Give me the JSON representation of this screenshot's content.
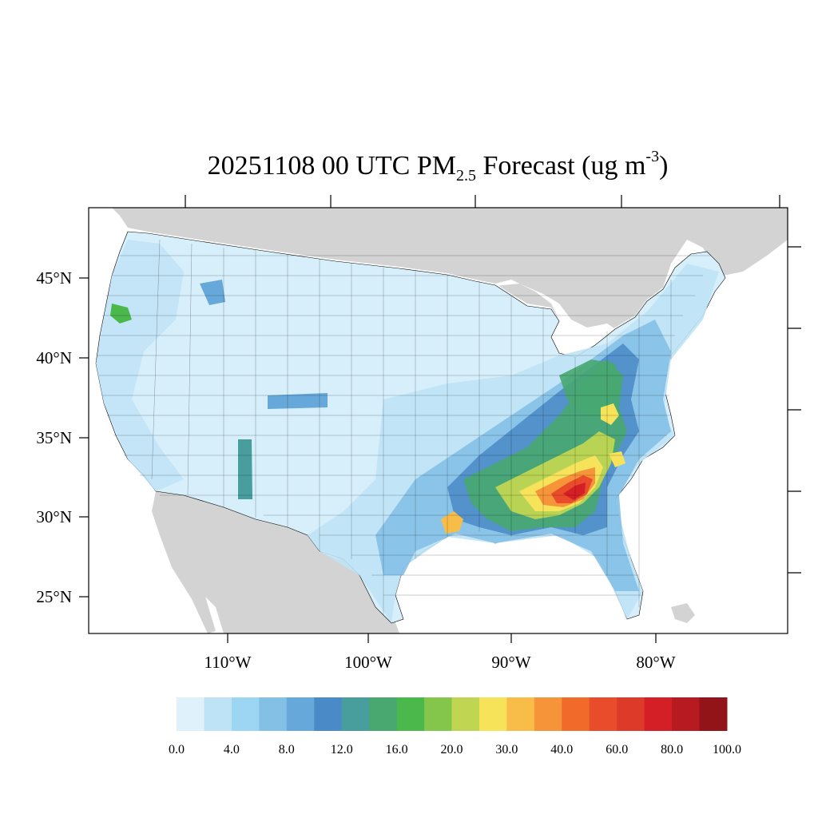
{
  "title": {
    "main": "20251108 00 UTC PM",
    "subscript": "2.5",
    "middle": " Forecast (ug m",
    "superscript": "-3",
    "end": ")"
  },
  "axes": {
    "lat_labels": [
      "45°N",
      "40°N",
      "35°N",
      "30°N",
      "25°N"
    ],
    "lon_labels": [
      "110°W",
      "100°W",
      "90°W",
      "80°W"
    ]
  },
  "colorbar": {
    "colors": [
      "#dff1fb",
      "#bfe3f6",
      "#9dd6f3",
      "#84c0e6",
      "#67a8da",
      "#4a8ac7",
      "#489e9d",
      "#48a870",
      "#4ab84a",
      "#84c54b",
      "#c0d653",
      "#f6e35a",
      "#f7bd48",
      "#f69439",
      "#f26a2a",
      "#e84c2a",
      "#de3a2a",
      "#d41f26",
      "#b81a22",
      "#921418"
    ],
    "labels": [
      "0.0",
      "4.0",
      "8.0",
      "12.0",
      "16.0",
      "20.0",
      "30.0",
      "40.0",
      "60.0",
      "80.0",
      "100.0"
    ]
  }
}
